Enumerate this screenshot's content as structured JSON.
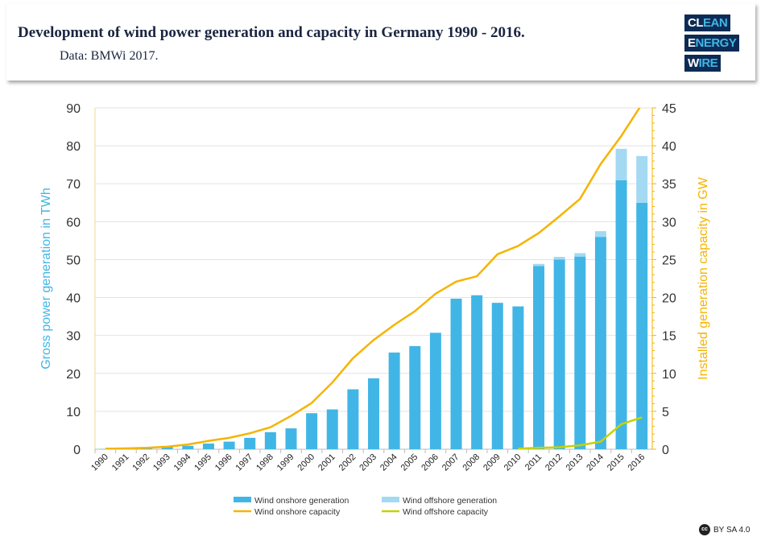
{
  "header": {
    "title": "Development of wind power generation and capacity in Germany 1990 - 2016.",
    "subtitle": "Data: BMWi 2017.",
    "logo": {
      "lines": [
        "CLEAN",
        "ENERGY",
        "WIRE"
      ]
    }
  },
  "license": "BY SA 4.0",
  "colors": {
    "onshore_gen": "#41b6e6",
    "offshore_gen": "#a3d9f2",
    "onshore_cap": "#f5b400",
    "offshore_cap": "#c5d200",
    "left_axis": "#41b6e6",
    "right_axis": "#f5b400"
  },
  "chart_data": {
    "type": "bar+line",
    "categories": [
      "1990",
      "1991",
      "1992",
      "1993",
      "1994",
      "1995",
      "1996",
      "1997",
      "1998",
      "1999",
      "2000",
      "2001",
      "2002",
      "2003",
      "2004",
      "2005",
      "2006",
      "2007",
      "2008",
      "2009",
      "2010",
      "2011",
      "2012",
      "2013",
      "2014",
      "2015",
      "2016"
    ],
    "ylabel": "Gross power generation in TWh",
    "ylim": [
      0,
      90
    ],
    "yticks": [
      0,
      10,
      20,
      30,
      40,
      50,
      60,
      70,
      80,
      90
    ],
    "y2label": "Installed generation capacity in GW",
    "y2lim": [
      0,
      45
    ],
    "y2ticks": [
      0,
      5,
      10,
      15,
      20,
      25,
      30,
      35,
      40,
      45
    ],
    "grid": true,
    "legend": "bottom",
    "series": [
      {
        "name": "Wind onshore generation",
        "type": "bar",
        "axis": "left",
        "values": [
          0.07,
          0.2,
          0.3,
          0.6,
          0.9,
          1.5,
          2.0,
          3.0,
          4.5,
          5.5,
          9.5,
          10.5,
          15.8,
          18.7,
          25.5,
          27.2,
          30.7,
          39.7,
          40.6,
          38.6,
          37.6,
          48.3,
          50.0,
          50.8,
          56.0,
          70.9,
          65.0
        ]
      },
      {
        "name": "Wind offshore generation",
        "type": "bar",
        "stacked": true,
        "axis": "left",
        "values": [
          0,
          0,
          0,
          0,
          0,
          0,
          0,
          0,
          0,
          0,
          0,
          0,
          0,
          0,
          0,
          0,
          0,
          0,
          0,
          0.04,
          0.17,
          0.57,
          0.72,
          0.9,
          1.5,
          8.3,
          12.3
        ]
      },
      {
        "name": "Wind onshore capacity",
        "type": "line",
        "axis": "right",
        "values": [
          0.06,
          0.1,
          0.18,
          0.33,
          0.62,
          1.1,
          1.5,
          2.1,
          2.9,
          4.4,
          6.1,
          8.8,
          12.0,
          14.4,
          16.4,
          18.2,
          20.5,
          22.1,
          22.8,
          25.7,
          26.8,
          28.5,
          30.7,
          33.0,
          37.6,
          41.3,
          45.5
        ]
      },
      {
        "name": "Wind offshore capacity",
        "type": "line",
        "axis": "right",
        "values": [
          null,
          null,
          null,
          null,
          null,
          null,
          null,
          null,
          null,
          null,
          null,
          null,
          null,
          null,
          null,
          null,
          null,
          null,
          null,
          null,
          0.08,
          0.19,
          0.27,
          0.52,
          1.0,
          3.3,
          4.2
        ]
      }
    ]
  }
}
